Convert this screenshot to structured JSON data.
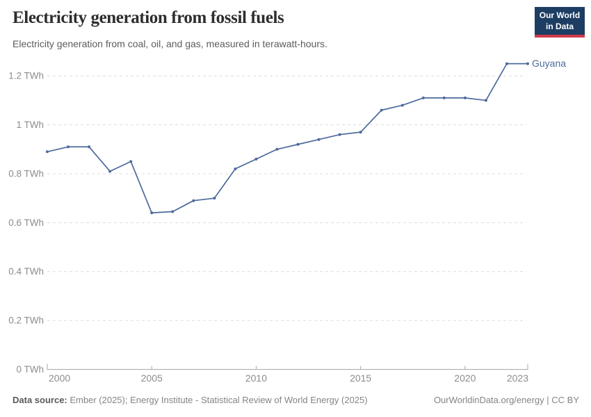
{
  "header": {
    "title": "Electricity generation from fossil fuels",
    "subtitle": "Electricity generation from coal, oil, and gas, measured in terawatt-hours.",
    "logo": {
      "line1": "Our World",
      "line2": "in Data"
    }
  },
  "brand": {
    "navy": "#1d3d63",
    "red": "#d0394a"
  },
  "chart_data": {
    "type": "line",
    "title": "Electricity generation from fossil fuels",
    "unit": "TWh",
    "x_range": [
      2000,
      2023
    ],
    "x_ticks": [
      2000,
      2005,
      2010,
      2015,
      2020,
      2023
    ],
    "y_ticks": [
      {
        "value": 0,
        "label": "0 TWh"
      },
      {
        "value": 0.2,
        "label": "0.2 TWh"
      },
      {
        "value": 0.4,
        "label": "0.4 TWh"
      },
      {
        "value": 0.6,
        "label": "0.6 TWh"
      },
      {
        "value": 0.8,
        "label": "0.8 TWh"
      },
      {
        "value": 1,
        "label": "1 TWh"
      },
      {
        "value": 1.2,
        "label": "1.2 TWh"
      }
    ],
    "ylim": [
      0,
      1.3
    ],
    "grid": "horizontal-dashed",
    "legend_position": "end-of-line",
    "series": [
      {
        "name": "Guyana",
        "color": "#4c6a9c",
        "x": [
          2000,
          2001,
          2002,
          2003,
          2004,
          2005,
          2006,
          2007,
          2008,
          2009,
          2010,
          2011,
          2012,
          2013,
          2014,
          2015,
          2016,
          2017,
          2018,
          2019,
          2020,
          2021,
          2022,
          2023
        ],
        "values": [
          0.89,
          0.91,
          0.91,
          0.81,
          0.85,
          0.64,
          0.645,
          0.69,
          0.7,
          0.82,
          0.86,
          0.9,
          0.92,
          0.94,
          0.96,
          0.97,
          1.06,
          1.08,
          1.11,
          1.11,
          1.11,
          1.1,
          1.25,
          1.25
        ]
      }
    ],
    "colors": {
      "grid": "#dcdcdc",
      "axis": "#a8a8a8",
      "tick_label": "#8c8c8c"
    }
  },
  "footer": {
    "source_label": "Data source:",
    "source_text": "Ember (2025); Energy Institute - Statistical Review of World Energy (2025)",
    "rights": "OurWorldinData.org/energy | CC BY"
  }
}
